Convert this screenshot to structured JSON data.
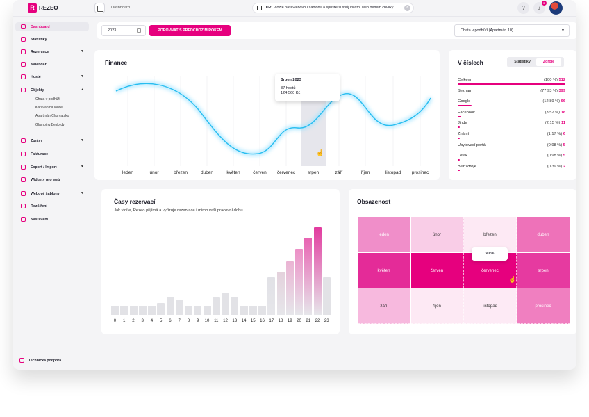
{
  "brand": {
    "logo_letter": "R",
    "name": "REZEO",
    "accent": "#e6007e"
  },
  "topbar": {
    "breadcrumb": "Dashboard",
    "tip_label": "TIP:",
    "tip_text": "Vložte naši webovou šablonu a spusťe si svůj vlastní web během chvilky.",
    "help_icon": "?",
    "notif_count": "2"
  },
  "sidebar": {
    "items": [
      {
        "label": "Dashboard",
        "icon": "dashboard-icon",
        "active": true
      },
      {
        "label": "Statistiky",
        "icon": "chart-icon"
      },
      {
        "label": "Rezervace",
        "icon": "reservation-icon",
        "expand": "down"
      },
      {
        "label": "Kalendář",
        "icon": "calendar-icon"
      },
      {
        "label": "Hosté",
        "icon": "guests-icon",
        "expand": "down"
      },
      {
        "label": "Objekty",
        "icon": "building-icon",
        "expand": "up"
      },
      {
        "label": "Zprávy",
        "icon": "message-icon",
        "expand": "down"
      },
      {
        "label": "Fakturace",
        "icon": "invoice-icon"
      },
      {
        "label": "Export / Import",
        "icon": "export-icon",
        "expand": "down"
      },
      {
        "label": "Widgety pro web",
        "icon": "widget-icon"
      },
      {
        "label": "Webové šablony",
        "icon": "template-icon",
        "expand": "down"
      },
      {
        "label": "Rozšíření",
        "icon": "extension-icon"
      },
      {
        "label": "Nastavení",
        "icon": "settings-icon"
      }
    ],
    "objects": [
      "Chata v podhůří",
      "Karavan na louce",
      "Apartmán Chorvatsko",
      "Glamping Beskydy"
    ],
    "help": "Technická podpora"
  },
  "filters": {
    "year": "2023",
    "compare_button": "POROVNAT S PŘEDCHOZÍM ROKEM",
    "property": "Chata v podhůří (Apartmán 10)"
  },
  "finance": {
    "title": "Finance",
    "months": [
      "leden",
      "únor",
      "březen",
      "duben",
      "květen",
      "červen",
      "červenec",
      "srpen",
      "září",
      "říjen",
      "listopad",
      "prosinec"
    ],
    "tooltip": {
      "title": "Srpen 2023",
      "guests": "37 hostů",
      "amount": "124 560 Kč"
    },
    "highlight_index": 7
  },
  "v_cislech": {
    "title": "V číslech",
    "tabs": [
      "Statistiky",
      "Zdroje"
    ],
    "active_tab": "Zdroje",
    "rows": [
      {
        "name": "Celkem",
        "pct": "(100 %)",
        "count": "512",
        "frac": 1.0
      },
      {
        "name": "Seznam",
        "pct": "(77.93 %)",
        "count": "399",
        "frac": 0.7793
      },
      {
        "name": "Google",
        "pct": "(12.89 %)",
        "count": "66",
        "frac": 0.1289
      },
      {
        "name": "Facebook",
        "pct": "(3.52 %)",
        "count": "18",
        "frac": 0.0352
      },
      {
        "name": "Jinde",
        "pct": "(2.15 %)",
        "count": "11",
        "frac": 0.0215
      },
      {
        "name": "Známí",
        "pct": "(1.17 %)",
        "count": "6",
        "frac": 0.0117
      },
      {
        "name": "Ubytovací portál",
        "pct": "(0.98 %)",
        "count": "5",
        "frac": 0.0098
      },
      {
        "name": "Leták",
        "pct": "(0.98 %)",
        "count": "5",
        "frac": 0.0098
      },
      {
        "name": "Bez zdroje",
        "pct": "(0.39 %)",
        "count": "2",
        "frac": 0.0039
      }
    ]
  },
  "casy": {
    "title": "Časy rezervací",
    "subtitle": "Jak vidíte, Rezeo přijímá a vyřizuje rezervace i mimo vaši pracovní dobu.",
    "hours": [
      "0",
      "1",
      "2",
      "3",
      "4",
      "5",
      "6",
      "7",
      "8",
      "9",
      "10",
      "11",
      "12",
      "13",
      "14",
      "15",
      "16",
      "17",
      "18",
      "19",
      "20",
      "21",
      "22",
      "23"
    ],
    "relative_values": [
      0.08,
      0.08,
      0.08,
      0.08,
      0.08,
      0.11,
      0.16,
      0.13,
      0.08,
      0.08,
      0.08,
      0.16,
      0.2,
      0.16,
      0.08,
      0.08,
      0.08,
      0.34,
      0.39,
      0.49,
      0.6,
      0.7,
      0.8,
      0.34
    ]
  },
  "obsazenost": {
    "title": "Obsazenost",
    "months": [
      "leden",
      "únor",
      "březen",
      "duben",
      "květen",
      "červen",
      "červenec",
      "srpen",
      "září",
      "říjen",
      "listopad",
      "prosinec"
    ],
    "colors": [
      "#f08ec9",
      "#f9cde7",
      "#fde9f4",
      "#ee72b9",
      "#e42b98",
      "#e6007e",
      "#e6007e",
      "#e63aa0",
      "#f7b9de",
      "#fde9f4",
      "#fdeaf5",
      "#f07fc0"
    ],
    "tooltip": "90 %"
  }
}
